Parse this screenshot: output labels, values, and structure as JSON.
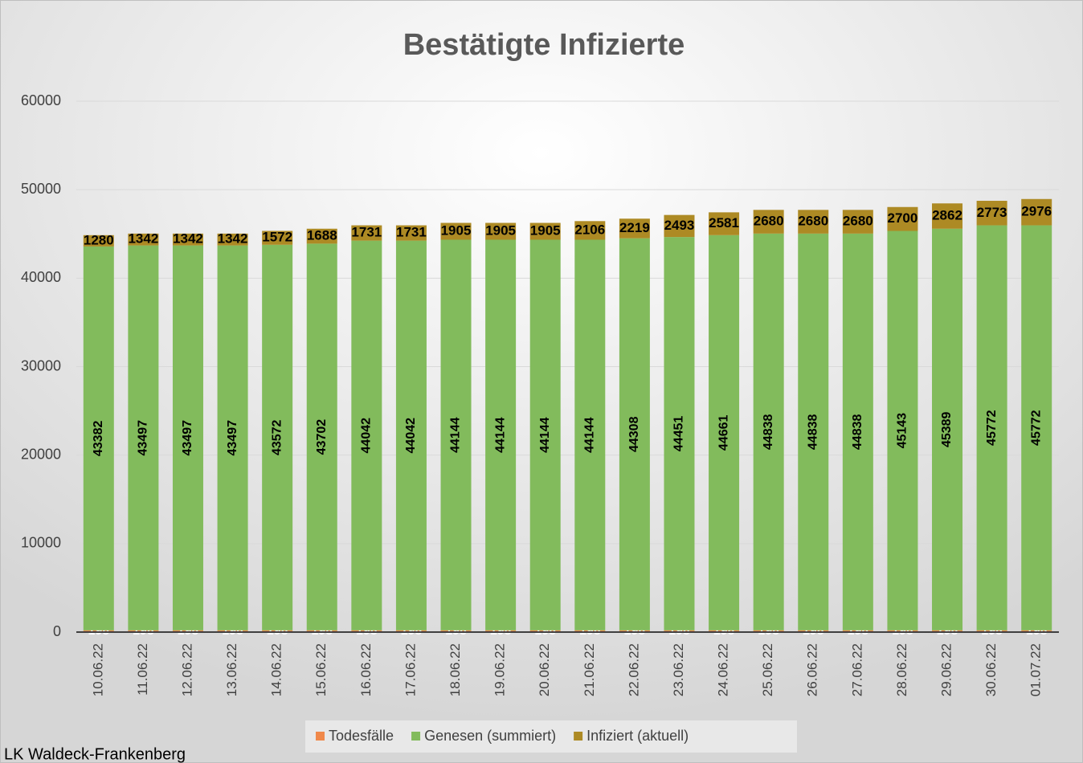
{
  "chart_data": {
    "type": "stacked_bar",
    "title": "Bestätigte Infizierte",
    "annotation": "LK Waldeck-Frankenberg",
    "categories": [
      "10.06.22",
      "11.06.22",
      "12.06.22",
      "13.06.22",
      "14.06.22",
      "15.06.22",
      "16.06.22",
      "17.06.22",
      "18.06.22",
      "19.06.22",
      "20.06.22",
      "21.06.22",
      "22.06.22",
      "23.06.22",
      "24.06.22",
      "25.06.22",
      "26.06.22",
      "27.06.22",
      "28.06.22",
      "29.06.22",
      "30.06.22",
      "01.07.22"
    ],
    "series": [
      {
        "name": "Todesfälle",
        "color": "#f0884a",
        "values": [
          198,
          198,
          198,
          198,
          198,
          198,
          198,
          198,
          198,
          198,
          198,
          198,
          198,
          198,
          198,
          198,
          198,
          198,
          198,
          198,
          198,
          198
        ]
      },
      {
        "name": "Genesen (summiert)",
        "color": "#82bb5c",
        "values": [
          43382,
          43497,
          43497,
          43497,
          43572,
          43702,
          44042,
          44042,
          44144,
          44144,
          44144,
          44144,
          44308,
          44451,
          44661,
          44838,
          44838,
          44838,
          45143,
          45389,
          45772,
          45772
        ]
      },
      {
        "name": "Infiziert (aktuell)",
        "color": "#ad8a24",
        "values": [
          1280,
          1342,
          1342,
          1342,
          1572,
          1688,
          1731,
          1731,
          1905,
          1905,
          1905,
          2106,
          2219,
          2493,
          2581,
          2680,
          2680,
          2680,
          2700,
          2862,
          2773,
          2976
        ]
      }
    ],
    "ylim": [
      0,
      60000
    ],
    "yticks": [
      0,
      10000,
      20000,
      30000,
      40000,
      50000,
      60000
    ],
    "grid": true,
    "legend": "bottom"
  }
}
